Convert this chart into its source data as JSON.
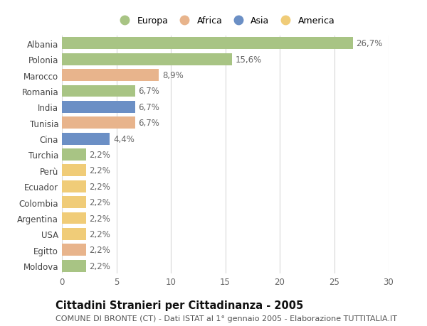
{
  "title": "Cittadini Stranieri per Cittadinanza - 2005",
  "subtitle": "COMUNE DI BRONTE (CT) - Dati ISTAT al 1° gennaio 2005 - Elaborazione TUTTITALIA.IT",
  "categories": [
    "Albania",
    "Polonia",
    "Marocco",
    "Romania",
    "India",
    "Tunisia",
    "Cina",
    "Turchia",
    "Perù",
    "Ecuador",
    "Colombia",
    "Argentina",
    "USA",
    "Egitto",
    "Moldova"
  ],
  "values": [
    26.7,
    15.6,
    8.9,
    6.7,
    6.7,
    6.7,
    4.4,
    2.2,
    2.2,
    2.2,
    2.2,
    2.2,
    2.2,
    2.2,
    2.2
  ],
  "labels": [
    "26,7%",
    "15,6%",
    "8,9%",
    "6,7%",
    "6,7%",
    "6,7%",
    "4,4%",
    "2,2%",
    "2,2%",
    "2,2%",
    "2,2%",
    "2,2%",
    "2,2%",
    "2,2%",
    "2,2%"
  ],
  "continents": [
    "Europa",
    "Europa",
    "Africa",
    "Europa",
    "Asia",
    "Africa",
    "Asia",
    "Europa",
    "America",
    "America",
    "America",
    "America",
    "America",
    "Africa",
    "Europa"
  ],
  "continent_colors": {
    "Europa": "#a8c484",
    "Africa": "#e8b48c",
    "Asia": "#6b8fc5",
    "America": "#f0cc78"
  },
  "legend_order": [
    "Europa",
    "Africa",
    "Asia",
    "America"
  ],
  "xlim": [
    0,
    30
  ],
  "xticks": [
    0,
    5,
    10,
    15,
    20,
    25,
    30
  ],
  "background_color": "#ffffff",
  "grid_color": "#d8d8d8",
  "bar_height": 0.75,
  "label_fontsize": 8.5,
  "title_fontsize": 10.5,
  "subtitle_fontsize": 8,
  "tick_fontsize": 8.5,
  "legend_fontsize": 9
}
